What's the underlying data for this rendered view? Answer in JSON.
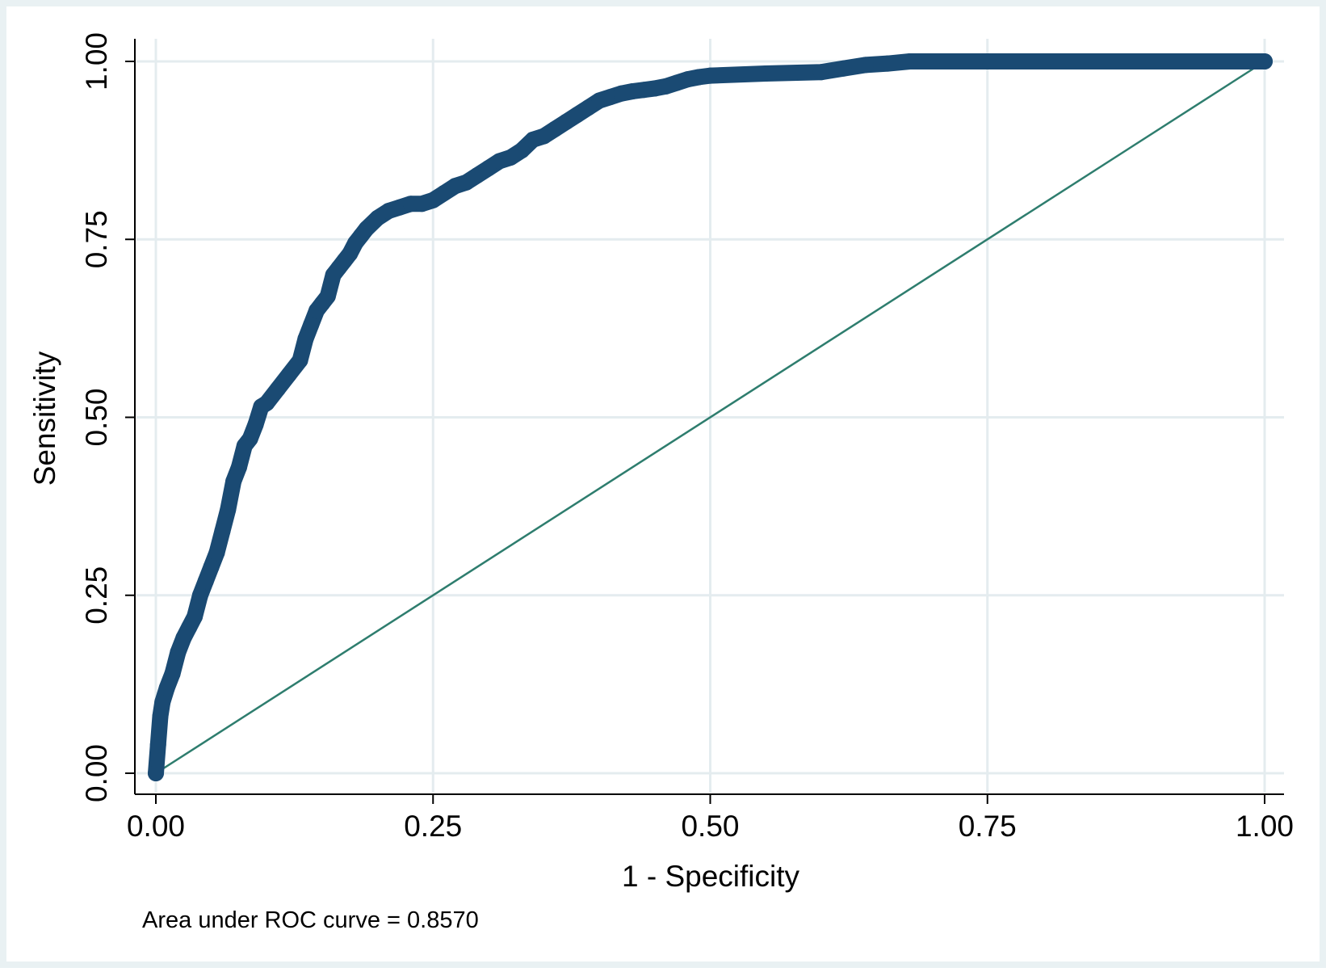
{
  "chart_data": {
    "type": "line",
    "title": "",
    "xlabel": "1 - Specificity",
    "ylabel": "Sensitivity",
    "xlim": [
      0,
      1
    ],
    "ylim": [
      0,
      1
    ],
    "x_ticks": [
      "0.00",
      "0.25",
      "0.50",
      "0.75",
      "1.00"
    ],
    "y_ticks": [
      "0.00",
      "0.25",
      "0.50",
      "0.75",
      "1.00"
    ],
    "grid": true,
    "legend": "none",
    "note": "Area under ROC curve = 0.8570",
    "colors": {
      "roc": "#1a4a73",
      "reference": "#2e7d6e",
      "grid": "#e4ecef",
      "axis": "#000000",
      "outer_background": "#e9f1f3",
      "plot_background": "#ffffff"
    },
    "series": [
      {
        "style": "thick-markers",
        "x": [
          0.0,
          0.002,
          0.004,
          0.006,
          0.01,
          0.015,
          0.02,
          0.025,
          0.03,
          0.035,
          0.04,
          0.045,
          0.05,
          0.055,
          0.06,
          0.065,
          0.07,
          0.075,
          0.08,
          0.085,
          0.09,
          0.095,
          0.1,
          0.11,
          0.12,
          0.13,
          0.135,
          0.14,
          0.145,
          0.15,
          0.155,
          0.16,
          0.165,
          0.17,
          0.175,
          0.18,
          0.185,
          0.19,
          0.2,
          0.21,
          0.22,
          0.23,
          0.24,
          0.25,
          0.26,
          0.27,
          0.28,
          0.29,
          0.3,
          0.31,
          0.32,
          0.33,
          0.34,
          0.35,
          0.36,
          0.37,
          0.38,
          0.39,
          0.4,
          0.41,
          0.42,
          0.43,
          0.44,
          0.45,
          0.46,
          0.47,
          0.48,
          0.49,
          0.5,
          0.55,
          0.6,
          0.62,
          0.64,
          0.66,
          0.68,
          0.7,
          0.75,
          0.8,
          0.9,
          1.0
        ],
        "y": [
          0.0,
          0.04,
          0.08,
          0.1,
          0.12,
          0.14,
          0.17,
          0.19,
          0.205,
          0.22,
          0.25,
          0.27,
          0.29,
          0.31,
          0.34,
          0.37,
          0.41,
          0.43,
          0.46,
          0.47,
          0.49,
          0.515,
          0.52,
          0.54,
          0.56,
          0.58,
          0.61,
          0.63,
          0.65,
          0.66,
          0.67,
          0.7,
          0.71,
          0.72,
          0.73,
          0.745,
          0.755,
          0.765,
          0.78,
          0.79,
          0.795,
          0.8,
          0.8,
          0.805,
          0.815,
          0.825,
          0.83,
          0.84,
          0.85,
          0.86,
          0.865,
          0.875,
          0.89,
          0.895,
          0.905,
          0.915,
          0.925,
          0.935,
          0.945,
          0.95,
          0.955,
          0.958,
          0.96,
          0.962,
          0.965,
          0.97,
          0.975,
          0.978,
          0.98,
          0.983,
          0.985,
          0.99,
          0.995,
          0.997,
          1.0,
          1.0,
          1.0,
          1.0,
          1.0,
          1.0
        ]
      },
      {
        "style": "thin-line",
        "x": [
          0,
          1
        ],
        "y": [
          0,
          1
        ]
      }
    ]
  }
}
